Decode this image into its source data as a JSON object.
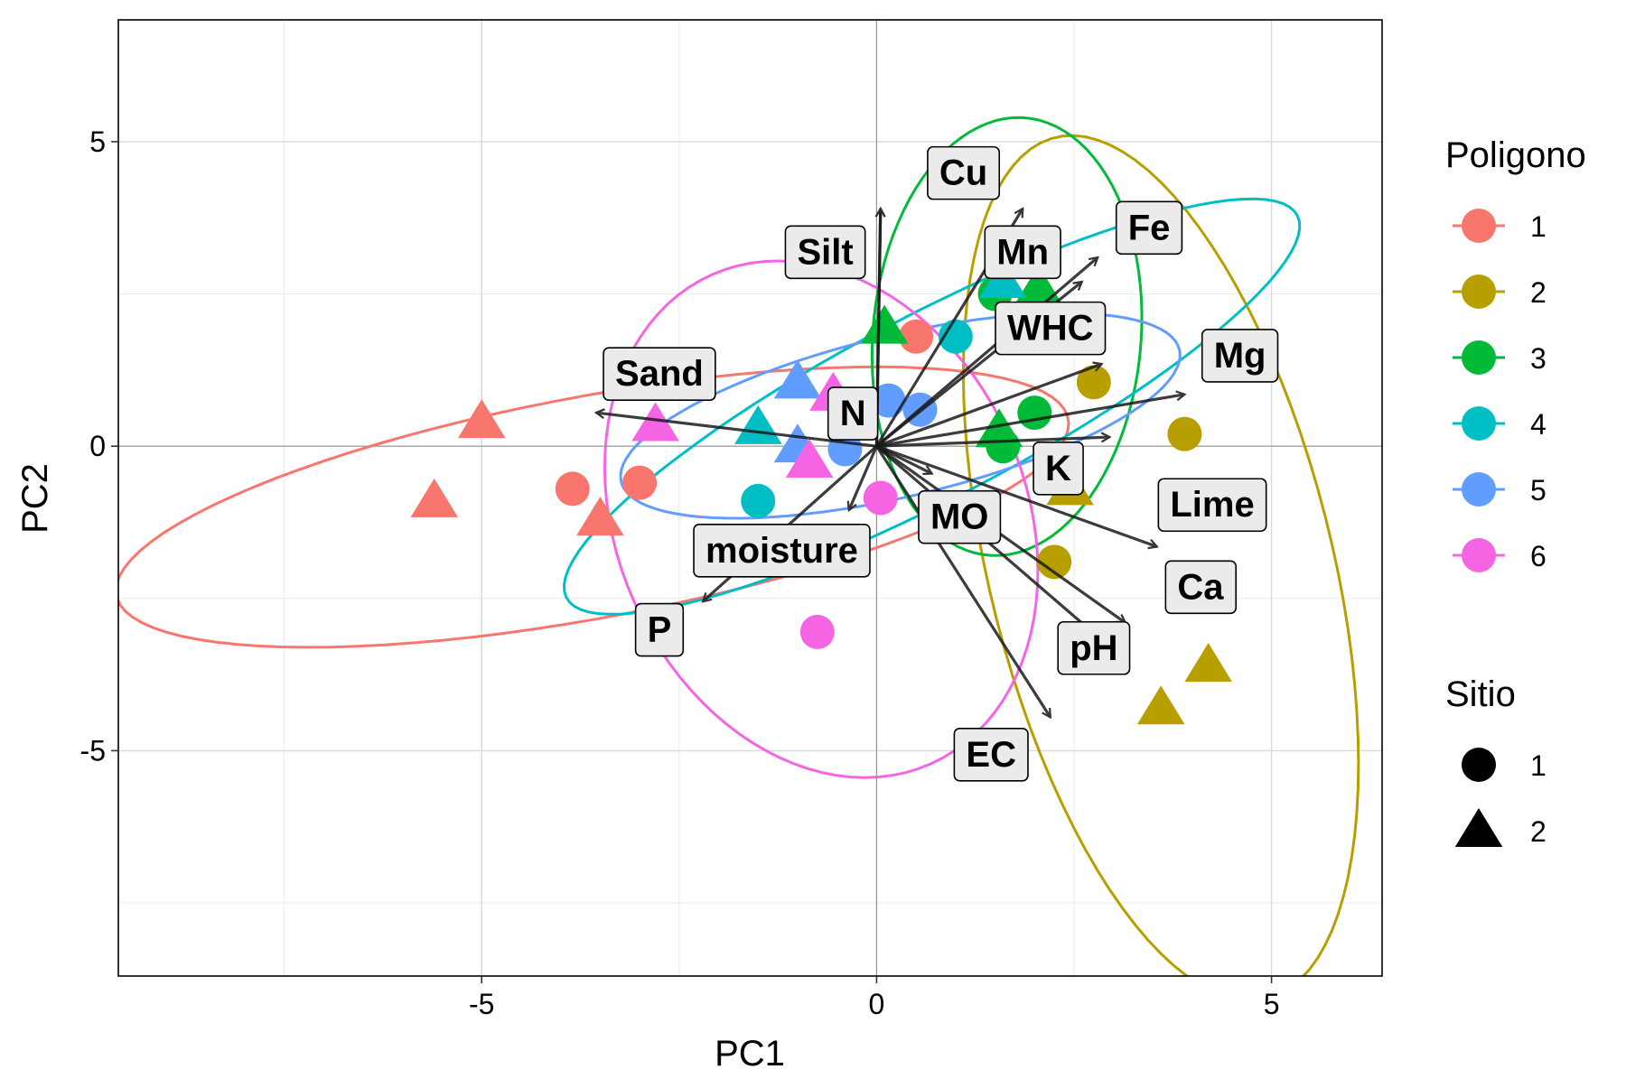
{
  "chart_data": {
    "type": "scatter",
    "title": "",
    "xlabel": "PC1",
    "ylabel": "PC2",
    "xlim": [
      -9.6,
      6.4
    ],
    "ylim": [
      -8.7,
      7.0
    ],
    "x_ticks": [
      -5,
      0,
      5
    ],
    "x_tick_labels": [
      "-5",
      "0",
      "5"
    ],
    "y_ticks": [
      -5,
      0,
      5
    ],
    "y_tick_labels": [
      "-5",
      "0",
      "5"
    ],
    "grid": true,
    "legend_placement": "right",
    "poligono_legend": {
      "title": "Poligono",
      "entries": [
        {
          "label": "1",
          "color": "#F8766D"
        },
        {
          "label": "2",
          "color": "#B79F00"
        },
        {
          "label": "3",
          "color": "#00BA38"
        },
        {
          "label": "4",
          "color": "#00BFC4"
        },
        {
          "label": "5",
          "color": "#619CFF"
        },
        {
          "label": "6",
          "color": "#F564E3"
        }
      ]
    },
    "sitio_legend": {
      "title": "Sitio",
      "entries": [
        {
          "label": "1",
          "shape": "circle"
        },
        {
          "label": "2",
          "shape": "triangle"
        }
      ]
    },
    "points": [
      {
        "x": -5.0,
        "y": 0.4,
        "poligono": 1,
        "sitio": 2
      },
      {
        "x": -5.6,
        "y": -0.9,
        "poligono": 1,
        "sitio": 2
      },
      {
        "x": -3.5,
        "y": -1.2,
        "poligono": 1,
        "sitio": 2
      },
      {
        "x": -3.85,
        "y": -0.7,
        "poligono": 1,
        "sitio": 1
      },
      {
        "x": -3.0,
        "y": -0.6,
        "poligono": 1,
        "sitio": 1
      },
      {
        "x": 0.5,
        "y": 1.8,
        "poligono": 1,
        "sitio": 1
      },
      {
        "x": 2.75,
        "y": 1.05,
        "poligono": 2,
        "sitio": 1
      },
      {
        "x": 3.9,
        "y": 0.2,
        "poligono": 2,
        "sitio": 1
      },
      {
        "x": 2.25,
        "y": -1.9,
        "poligono": 2,
        "sitio": 1
      },
      {
        "x": 2.45,
        "y": -0.7,
        "poligono": 2,
        "sitio": 2
      },
      {
        "x": 4.2,
        "y": -3.6,
        "poligono": 2,
        "sitio": 2
      },
      {
        "x": 3.6,
        "y": -4.3,
        "poligono": 2,
        "sitio": 2
      },
      {
        "x": 0.1,
        "y": 1.95,
        "poligono": 3,
        "sitio": 2
      },
      {
        "x": 2.05,
        "y": 2.6,
        "poligono": 3,
        "sitio": 2
      },
      {
        "x": 1.55,
        "y": 0.25,
        "poligono": 3,
        "sitio": 2
      },
      {
        "x": 2.0,
        "y": 0.55,
        "poligono": 3,
        "sitio": 1
      },
      {
        "x": 1.6,
        "y": 0.0,
        "poligono": 3,
        "sitio": 1
      },
      {
        "x": 1.5,
        "y": 2.5,
        "poligono": 3,
        "sitio": 1
      },
      {
        "x": -1.5,
        "y": 0.3,
        "poligono": 4,
        "sitio": 2
      },
      {
        "x": 1.6,
        "y": 2.7,
        "poligono": 4,
        "sitio": 2
      },
      {
        "x": -1.5,
        "y": -0.9,
        "poligono": 4,
        "sitio": 1
      },
      {
        "x": 1.0,
        "y": 1.8,
        "poligono": 4,
        "sitio": 1
      },
      {
        "x": -1.0,
        "y": 1.05,
        "poligono": 5,
        "sitio": 2
      },
      {
        "x": -1.0,
        "y": 0.0,
        "poligono": 5,
        "sitio": 2
      },
      {
        "x": 0.15,
        "y": 0.75,
        "poligono": 5,
        "sitio": 1
      },
      {
        "x": 0.55,
        "y": 0.6,
        "poligono": 5,
        "sitio": 1
      },
      {
        "x": -0.4,
        "y": -0.05,
        "poligono": 5,
        "sitio": 1
      },
      {
        "x": -2.8,
        "y": 0.35,
        "poligono": 6,
        "sitio": 2
      },
      {
        "x": -0.85,
        "y": -0.25,
        "poligono": 6,
        "sitio": 2
      },
      {
        "x": -0.55,
        "y": 0.85,
        "poligono": 6,
        "sitio": 2
      },
      {
        "x": 0.05,
        "y": -0.85,
        "poligono": 6,
        "sitio": 1
      },
      {
        "x": -0.75,
        "y": -3.05,
        "poligono": 6,
        "sitio": 1
      }
    ],
    "ellipses": [
      {
        "poligono": 1,
        "cx": -3.6,
        "cy": -1.0,
        "rx": 6.2,
        "ry": 1.8,
        "angle": 14
      },
      {
        "poligono": 2,
        "cx": 3.6,
        "cy": -2.0,
        "rx": 7.2,
        "ry": 2.2,
        "angle": -80
      },
      {
        "poligono": 3,
        "cx": 1.65,
        "cy": 1.8,
        "rx": 3.6,
        "ry": 1.7,
        "angle": 87
      },
      {
        "poligono": 4,
        "cx": 0.7,
        "cy": 0.65,
        "rx": 5.6,
        "ry": 1.4,
        "angle": 35
      },
      {
        "poligono": 5,
        "cx": 0.3,
        "cy": 0.5,
        "rx": 3.7,
        "ry": 1.3,
        "angle": 18
      },
      {
        "poligono": 6,
        "cx": -0.7,
        "cy": -1.2,
        "rx": 4.3,
        "ry": 2.65,
        "angle": -78
      }
    ],
    "arrows": [
      {
        "label": "Cu",
        "x": 0.05,
        "y": 3.9,
        "label_x": 1.1,
        "label_y": 4.5
      },
      {
        "label": "Silt",
        "x": 0.05,
        "y": 3.9,
        "label_x": -0.65,
        "label_y": 3.2
      },
      {
        "label": "Mn",
        "x": 1.85,
        "y": 3.9,
        "label_x": 1.85,
        "label_y": 3.2
      },
      {
        "label": "Fe",
        "x": 2.8,
        "y": 3.1,
        "label_x": 3.45,
        "label_y": 3.6
      },
      {
        "label": "WHC",
        "x": 2.6,
        "y": 2.7,
        "label_x": 2.2,
        "label_y": 1.95
      },
      {
        "label": "Mg",
        "x": 3.9,
        "y": 0.85,
        "label_x": 4.6,
        "label_y": 1.5
      },
      {
        "label": "N",
        "x": 2.85,
        "y": 1.35,
        "label_x": -0.3,
        "label_y": 0.55
      },
      {
        "label": "K",
        "x": 2.95,
        "y": 0.15,
        "label_x": 2.3,
        "label_y": -0.35
      },
      {
        "label": "Sand",
        "x": -3.55,
        "y": 0.55,
        "label_x": -2.75,
        "label_y": 1.2
      },
      {
        "label": "Lime",
        "x": 3.55,
        "y": -1.65,
        "label_x": 4.25,
        "label_y": -0.95
      },
      {
        "label": "Ca",
        "x": 3.15,
        "y": -2.9,
        "label_x": 4.1,
        "label_y": -2.3
      },
      {
        "label": "MO",
        "x": 0.7,
        "y": -0.45,
        "label_x": 1.05,
        "label_y": -1.15
      },
      {
        "label": "moisture",
        "x": -0.35,
        "y": -1.05,
        "label_x": -1.2,
        "label_y": -1.7
      },
      {
        "label": "P",
        "x": -2.2,
        "y": -2.55,
        "label_x": -2.75,
        "label_y": -3.0
      },
      {
        "label": "pH",
        "x": 3.0,
        "y": -3.35,
        "label_x": 2.75,
        "label_y": -3.3
      },
      {
        "label": "EC",
        "x": 2.2,
        "y": -4.45,
        "label_x": 1.45,
        "label_y": -5.05
      }
    ]
  }
}
